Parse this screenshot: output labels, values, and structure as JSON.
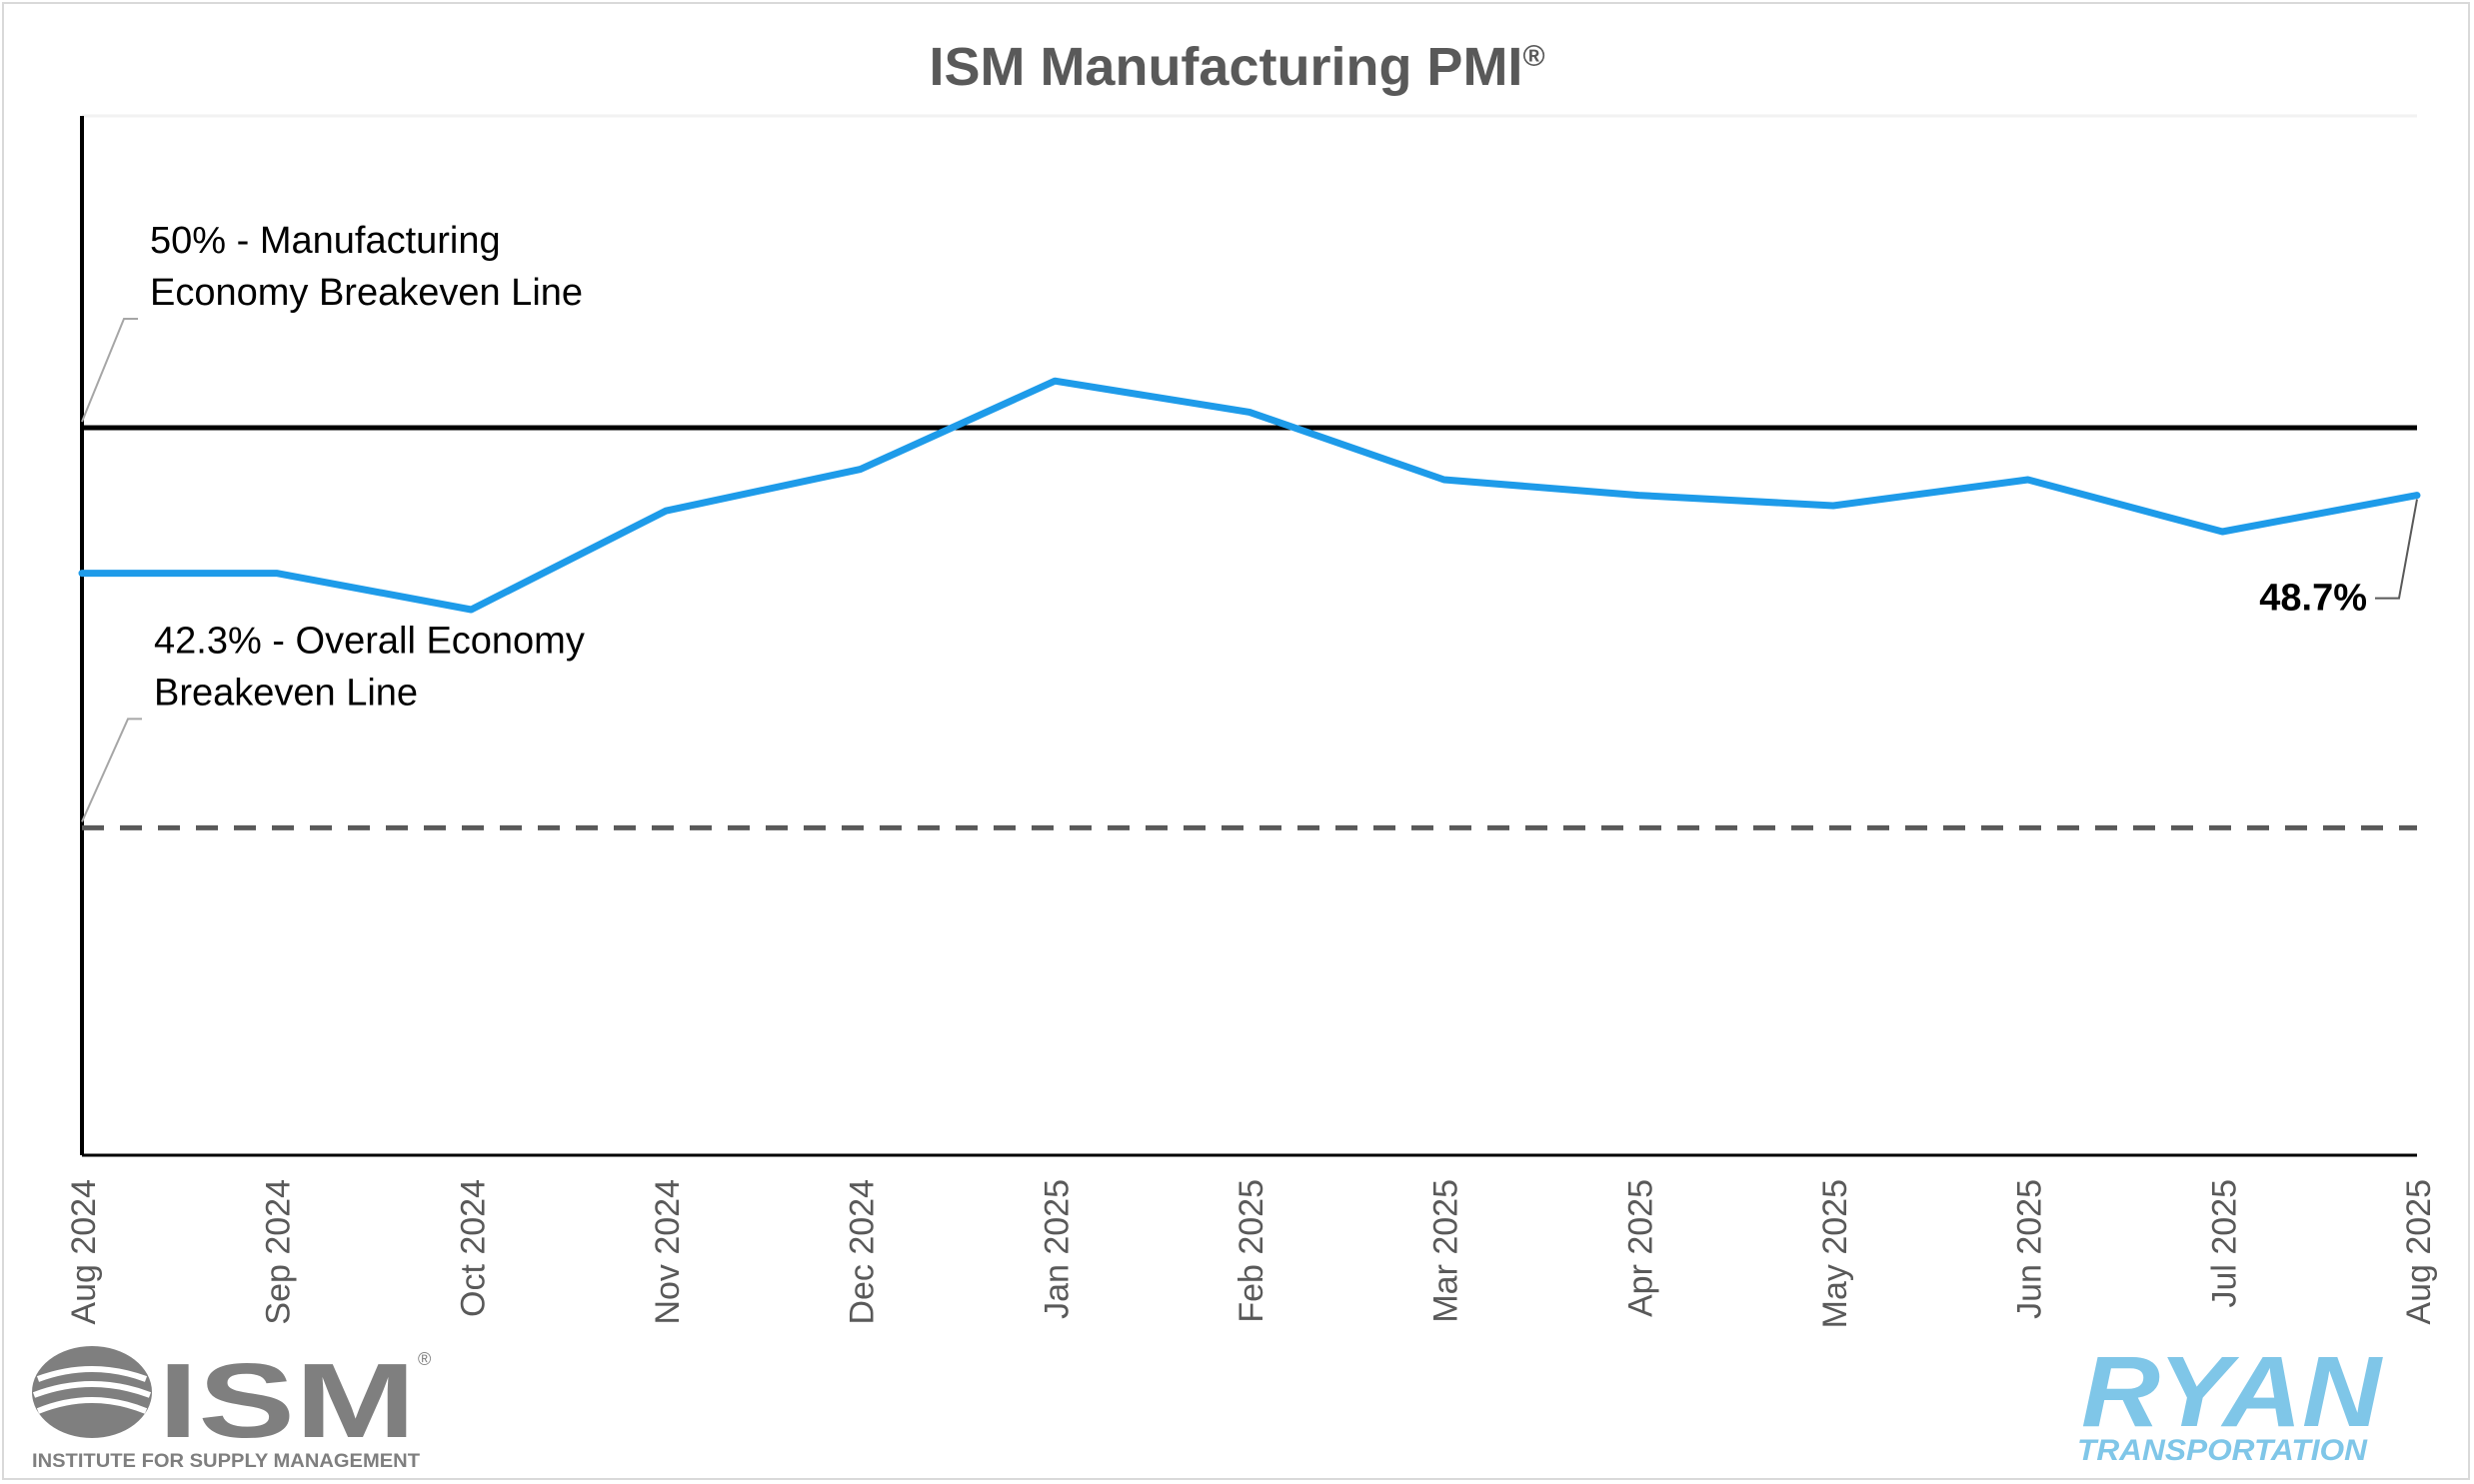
{
  "chart_data": {
    "type": "line",
    "title": "ISM Manufacturing PMI",
    "title_mark": "®",
    "xlabel": "",
    "ylabel": "",
    "ylim": [
      36,
      56
    ],
    "grid": false,
    "categories": [
      "Aug 2024",
      "Sep 2024",
      "Oct 2024",
      "Nov 2024",
      "Dec 2024",
      "Jan 2025",
      "Feb 2025",
      "Mar 2025",
      "Apr 2025",
      "May 2025",
      "Jun 2025",
      "Jul 2025",
      "Aug 2025"
    ],
    "series": [
      {
        "name": "",
        "color": "#1E9BE9",
        "values": [
          47.2,
          47.2,
          46.5,
          48.4,
          49.2,
          50.9,
          50.3,
          49.0,
          48.7,
          48.5,
          49.0,
          48.0,
          48.7
        ]
      }
    ],
    "reference_lines": [
      {
        "value": 50.0,
        "label": "50% - Manufacturing Economy Breakeven Line",
        "label_lines": [
          "50% - Manufacturing",
          "Economy Breakeven Line"
        ],
        "style": "solid",
        "color": "#000000"
      },
      {
        "value": 42.3,
        "label": "42.3% - Overall Economy Breakeven Line",
        "label_lines": [
          "42.3% - Overall Economy",
          "Breakeven Line"
        ],
        "style": "dashed",
        "color": "#595959"
      }
    ],
    "annotations": [
      {
        "text": "48.7%",
        "category": "Aug 2025",
        "value": 48.7
      }
    ]
  },
  "logos": {
    "ism": {
      "text": "ISM",
      "mark": "®",
      "tagline": "INSTITUTE FOR SUPPLY MANAGEMENT",
      "color": "#7f7f7f"
    },
    "ryan": {
      "text": "RYAN",
      "tagline": "TRANSPORTATION",
      "color": "#7fc6e8"
    }
  }
}
